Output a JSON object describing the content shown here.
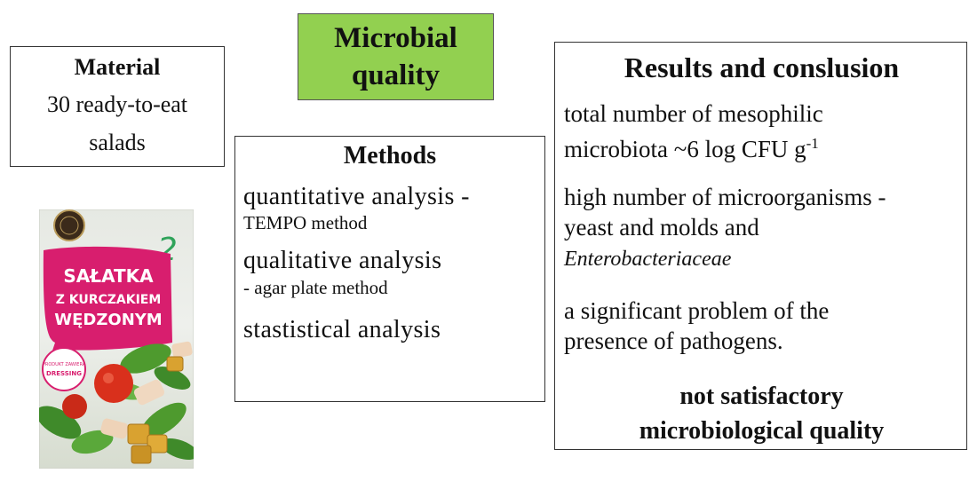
{
  "title": {
    "line1": "Microbial",
    "line2": "quality"
  },
  "material": {
    "heading": "Material",
    "line1": "30 ready-to-eat",
    "line2": "salads"
  },
  "methods": {
    "heading": "Methods",
    "item1_main": "quantitative analysis -",
    "item1_sub": "TEMPO method",
    "item2_main": "qualitative analysis",
    "item2_sub": "- agar plate method",
    "item3_main": "stastistical analysis"
  },
  "results": {
    "heading": "Results and conslusion",
    "p1_line1": "total number of mesophilic",
    "p1_line2": "microbiota ~6 log CFU g",
    "p1_sup": "-1",
    "p2_line1": "high number of microorganisms -",
    "p2_line2": "yeast and molds and",
    "p2_line3": "Enterobacteriaceae",
    "p3_line1": "a significant problem of the",
    "p3_line2": "presence of pathogens.",
    "conclusion_line1": "not satisfactory",
    "conclusion_line2": "microbiological  quality"
  },
  "package": {
    "name_line1": "SAŁATKA",
    "name_line2": "Z KURCZAKIEM",
    "name_line3": "WĘDZONYM",
    "badge_line1": "PRODUKT ZAWIERA",
    "badge_line2": "DRESSING",
    "handwritten_number": "2",
    "colors": {
      "pink": "#d81e6e",
      "leaf": "#3f8a2a",
      "tomato": "#d9301c",
      "crouton": "#d9a230"
    }
  },
  "colors": {
    "title_fill": "#92d050",
    "border": "#333333"
  }
}
